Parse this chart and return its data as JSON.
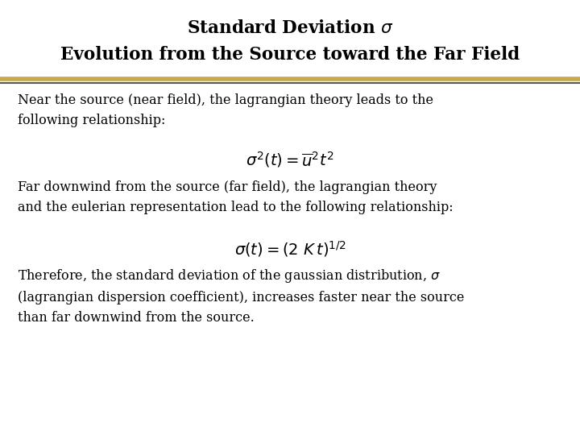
{
  "title_line1": "Standard Deviation $\\sigma$",
  "title_line2": "Evolution from the Source toward the Far Field",
  "separator_color_gold": "#C9A84C",
  "separator_color_gray": "#5A5A5A",
  "bg_color": "#FFFFFF",
  "text_color": "#000000",
  "title_font_size": 15.5,
  "body_font_size": 11.5,
  "eq_font_size": 14,
  "para1": "Near the source (near field), the lagrangian theory leads to the\nfollowing relationship:",
  "eq1": "$\\sigma^2(t)=\\overline{u}^2 t^2$",
  "para2": "Far downwind from the source (far field), the lagrangian theory\nand the eulerian representation lead to the following relationship:",
  "eq2": "$\\sigma(t) = ( 2 \\ \\mathit{K}\\,t )^{1/2}$",
  "para3": "Therefore, the standard deviation of the gaussian distribution, $\\sigma$\n(lagrangian dispersion coefficient), increases faster near the source\nthan far downwind from the source."
}
